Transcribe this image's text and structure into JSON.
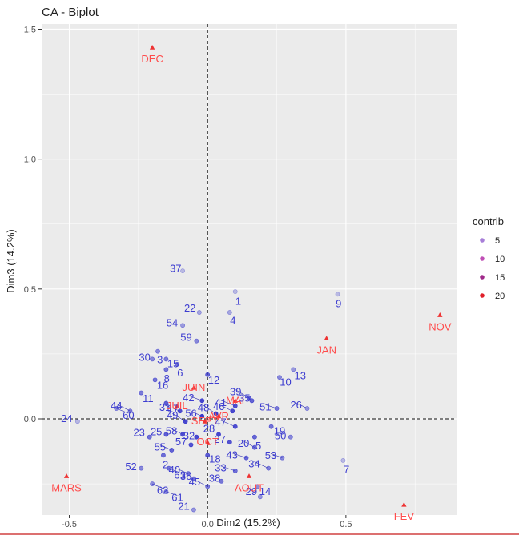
{
  "chart_data": {
    "type": "scatter",
    "title": "CA - Biplot",
    "xlabel": "Dim2 (15.2%)",
    "ylabel": "Dim3 (14.2%)",
    "xlim": [
      -0.6,
      0.9
    ],
    "ylim": [
      -0.37,
      1.52
    ],
    "x_ticks": [
      -0.5,
      0.0,
      0.5
    ],
    "x_tick_labels": [
      "-0.5",
      "0.0",
      "0.5"
    ],
    "y_ticks": [
      0.0,
      0.5,
      1.0,
      1.5
    ],
    "y_tick_labels": [
      "0.0",
      "0.5",
      "1.0",
      "1.5"
    ],
    "grid": true,
    "reference_lines": {
      "x": 0,
      "y": 0,
      "style": "dashed"
    },
    "legend": {
      "title": "contrib",
      "position": "right",
      "entries": [
        {
          "label": "5",
          "color": "#a77ed8"
        },
        {
          "label": "10",
          "color": "#c04fb6"
        },
        {
          "label": "15",
          "color": "#a02a8a"
        },
        {
          "label": "20",
          "color": "#e0202a"
        }
      ]
    },
    "colors": {
      "rows": "#3a3acc",
      "columns": "#ee3333"
    },
    "series": [
      {
        "name": "rows",
        "marker": "circle",
        "points": [
          {
            "label": "1",
            "x": 0.1,
            "y": 0.49
          },
          {
            "label": "2",
            "x": -0.16,
            "y": -0.14
          },
          {
            "label": "3",
            "x": -0.18,
            "y": 0.26
          },
          {
            "label": "4",
            "x": 0.08,
            "y": 0.41
          },
          {
            "label": "5",
            "x": 0.17,
            "y": -0.07
          },
          {
            "label": "6",
            "x": -0.11,
            "y": 0.21
          },
          {
            "label": "7",
            "x": 0.49,
            "y": -0.16
          },
          {
            "label": "8",
            "x": -0.15,
            "y": 0.19
          },
          {
            "label": "9",
            "x": 0.47,
            "y": 0.48
          },
          {
            "label": "10",
            "x": 0.26,
            "y": 0.16
          },
          {
            "label": "11",
            "x": -0.24,
            "y": 0.1
          },
          {
            "label": "12",
            "x": 0.0,
            "y": 0.17
          },
          {
            "label": "13",
            "x": 0.31,
            "y": 0.19
          },
          {
            "label": "14",
            "x": 0.18,
            "y": -0.26
          },
          {
            "label": "15",
            "x": -0.15,
            "y": 0.23
          },
          {
            "label": "16",
            "x": -0.19,
            "y": 0.15
          },
          {
            "label": "17",
            "x": -0.15,
            "y": 0.06
          },
          {
            "label": "18",
            "x": 0.0,
            "y": -0.14
          },
          {
            "label": "19",
            "x": 0.23,
            "y": -0.03
          },
          {
            "label": "20",
            "x": 0.17,
            "y": -0.11
          },
          {
            "label": "21",
            "x": -0.05,
            "y": -0.35
          },
          {
            "label": "22",
            "x": -0.03,
            "y": 0.41
          },
          {
            "label": "23",
            "x": -0.21,
            "y": -0.07
          },
          {
            "label": "24",
            "x": -0.47,
            "y": -0.01
          },
          {
            "label": "25",
            "x": -0.15,
            "y": -0.06
          },
          {
            "label": "26",
            "x": 0.36,
            "y": 0.04
          },
          {
            "label": "27",
            "x": 0.08,
            "y": -0.09
          },
          {
            "label": "28",
            "x": 0.04,
            "y": -0.06
          },
          {
            "label": "29",
            "x": 0.19,
            "y": -0.3
          },
          {
            "label": "30",
            "x": -0.2,
            "y": 0.23
          },
          {
            "label": "31",
            "x": -0.1,
            "y": 0.03
          },
          {
            "label": "32",
            "x": -0.04,
            "y": -0.07
          },
          {
            "label": "33",
            "x": 0.1,
            "y": -0.2
          },
          {
            "label": "34",
            "x": 0.22,
            "y": -0.19
          },
          {
            "label": "35",
            "x": 0.16,
            "y": 0.07
          },
          {
            "label": "36",
            "x": -0.05,
            "y": -0.23
          },
          {
            "label": "37",
            "x": -0.09,
            "y": 0.57
          },
          {
            "label": "38",
            "x": 0.05,
            "y": -0.24
          },
          {
            "label": "39",
            "x": 0.15,
            "y": 0.08
          },
          {
            "label": "40",
            "x": -0.07,
            "y": -0.21
          },
          {
            "label": "41",
            "x": 0.1,
            "y": 0.05
          },
          {
            "label": "42",
            "x": -0.02,
            "y": 0.07
          },
          {
            "label": "43",
            "x": 0.14,
            "y": -0.15
          },
          {
            "label": "44",
            "x": -0.28,
            "y": 0.03
          },
          {
            "label": "45",
            "x": 0.0,
            "y": -0.26
          },
          {
            "label": "46",
            "x": 0.09,
            "y": 0.03
          },
          {
            "label": "47",
            "x": 0.1,
            "y": -0.03
          },
          {
            "label": "48",
            "x": 0.03,
            "y": 0.02
          },
          {
            "label": "49",
            "x": -0.08,
            "y": -0.01
          },
          {
            "label": "50",
            "x": 0.3,
            "y": -0.07
          },
          {
            "label": "51",
            "x": 0.25,
            "y": 0.04
          },
          {
            "label": "52",
            "x": -0.24,
            "y": -0.19
          },
          {
            "label": "53",
            "x": 0.27,
            "y": -0.15
          },
          {
            "label": "54",
            "x": -0.09,
            "y": 0.36
          },
          {
            "label": "55",
            "x": -0.13,
            "y": -0.12
          },
          {
            "label": "56",
            "x": -0.02,
            "y": 0.01
          },
          {
            "label": "57",
            "x": -0.06,
            "y": -0.1
          },
          {
            "label": "58",
            "x": -0.09,
            "y": -0.06
          },
          {
            "label": "59",
            "x": -0.04,
            "y": 0.3
          },
          {
            "label": "60",
            "x": -0.33,
            "y": 0.04
          },
          {
            "label": "61",
            "x": -0.15,
            "y": -0.28
          },
          {
            "label": "62",
            "x": -0.2,
            "y": -0.25
          },
          {
            "label": "63",
            "x": -0.14,
            "y": -0.19
          }
        ]
      },
      {
        "name": "columns",
        "marker": "triangle",
        "points": [
          {
            "label": "DEC",
            "x": -0.2,
            "y": 1.43
          },
          {
            "label": "NOV",
            "x": 0.84,
            "y": 0.4
          },
          {
            "label": "JAN",
            "x": 0.43,
            "y": 0.31
          },
          {
            "label": "JUIN",
            "x": -0.05,
            "y": 0.12
          },
          {
            "label": "MAI",
            "x": 0.1,
            "y": 0.07
          },
          {
            "label": "AVR",
            "x": 0.04,
            "y": 0.01
          },
          {
            "label": "JUIL",
            "x": -0.11,
            "y": 0.05
          },
          {
            "label": "SEPT",
            "x": -0.01,
            "y": -0.01
          },
          {
            "label": "OCT",
            "x": 0.0,
            "y": -0.09
          },
          {
            "label": "AOUT",
            "x": 0.15,
            "y": -0.22
          },
          {
            "label": "MARS",
            "x": -0.51,
            "y": -0.22
          },
          {
            "label": "FEV",
            "x": 0.71,
            "y": -0.33
          }
        ]
      }
    ]
  }
}
